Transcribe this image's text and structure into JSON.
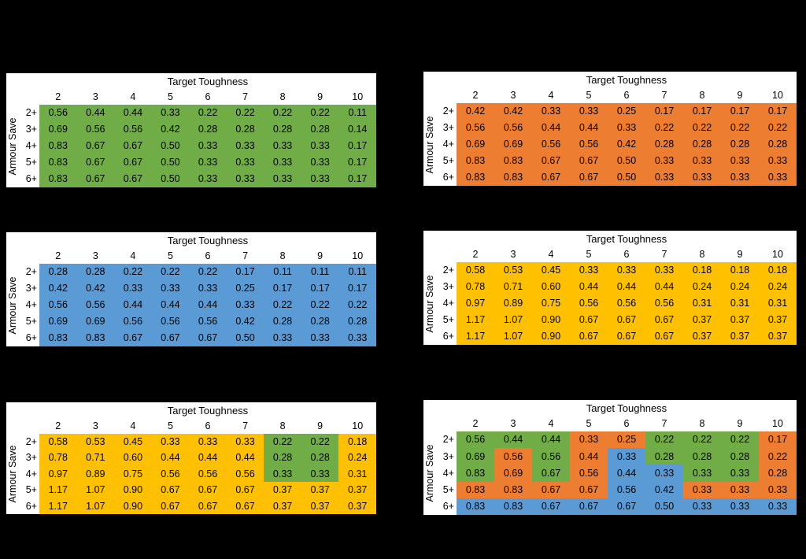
{
  "page": {
    "background": "#000000",
    "table_background": "#FFFFFF",
    "text_color": "#000000"
  },
  "color_map": {
    "green": "#70AD47",
    "orange": "#ED7D31",
    "blue": "#5B9BD5",
    "yellow": "#FFC000"
  },
  "chart_data": [
    {
      "type": "heatmap",
      "position": "top-left",
      "title": "Target Toughness",
      "ylabel": "Armour Save",
      "x_ticks": [
        "2",
        "3",
        "4",
        "5",
        "6",
        "7",
        "8",
        "9",
        "10"
      ],
      "y_ticks": [
        "2+",
        "3+",
        "4+",
        "5+",
        "6+"
      ],
      "uniform_color": "green",
      "cell_colors": null,
      "values": [
        [
          "0.56",
          "0.44",
          "0.44",
          "0.33",
          "0.22",
          "0.22",
          "0.22",
          "0.22",
          "0.11"
        ],
        [
          "0.69",
          "0.56",
          "0.56",
          "0.42",
          "0.28",
          "0.28",
          "0.28",
          "0.28",
          "0.14"
        ],
        [
          "0.83",
          "0.67",
          "0.67",
          "0.50",
          "0.33",
          "0.33",
          "0.33",
          "0.33",
          "0.17"
        ],
        [
          "0.83",
          "0.67",
          "0.67",
          "0.50",
          "0.33",
          "0.33",
          "0.33",
          "0.33",
          "0.17"
        ],
        [
          "0.83",
          "0.67",
          "0.67",
          "0.50",
          "0.33",
          "0.33",
          "0.33",
          "0.33",
          "0.17"
        ]
      ]
    },
    {
      "type": "heatmap",
      "position": "top-right",
      "title": "Target Toughness",
      "ylabel": "Armour Save",
      "x_ticks": [
        "2",
        "3",
        "4",
        "5",
        "6",
        "7",
        "8",
        "9",
        "10"
      ],
      "y_ticks": [
        "2+",
        "3+",
        "4+",
        "5+",
        "6+"
      ],
      "uniform_color": "orange",
      "cell_colors": null,
      "values": [
        [
          "0.42",
          "0.42",
          "0.33",
          "0.33",
          "0.25",
          "0.17",
          "0.17",
          "0.17",
          "0.17"
        ],
        [
          "0.56",
          "0.56",
          "0.44",
          "0.44",
          "0.33",
          "0.22",
          "0.22",
          "0.22",
          "0.22"
        ],
        [
          "0.69",
          "0.69",
          "0.56",
          "0.56",
          "0.42",
          "0.28",
          "0.28",
          "0.28",
          "0.28"
        ],
        [
          "0.83",
          "0.83",
          "0.67",
          "0.67",
          "0.50",
          "0.33",
          "0.33",
          "0.33",
          "0.33"
        ],
        [
          "0.83",
          "0.83",
          "0.67",
          "0.67",
          "0.50",
          "0.33",
          "0.33",
          "0.33",
          "0.33"
        ]
      ]
    },
    {
      "type": "heatmap",
      "position": "middle-left",
      "title": "Target Toughness",
      "ylabel": "Armour Save",
      "x_ticks": [
        "2",
        "3",
        "4",
        "5",
        "6",
        "7",
        "8",
        "9",
        "10"
      ],
      "y_ticks": [
        "2+",
        "3+",
        "4+",
        "5+",
        "6+"
      ],
      "uniform_color": "blue",
      "cell_colors": null,
      "values": [
        [
          "0.28",
          "0.28",
          "0.22",
          "0.22",
          "0.22",
          "0.17",
          "0.11",
          "0.11",
          "0.11"
        ],
        [
          "0.42",
          "0.42",
          "0.33",
          "0.33",
          "0.33",
          "0.25",
          "0.17",
          "0.17",
          "0.17"
        ],
        [
          "0.56",
          "0.56",
          "0.44",
          "0.44",
          "0.44",
          "0.33",
          "0.22",
          "0.22",
          "0.22"
        ],
        [
          "0.69",
          "0.69",
          "0.56",
          "0.56",
          "0.56",
          "0.42",
          "0.28",
          "0.28",
          "0.28"
        ],
        [
          "0.83",
          "0.83",
          "0.67",
          "0.67",
          "0.67",
          "0.50",
          "0.33",
          "0.33",
          "0.33"
        ]
      ]
    },
    {
      "type": "heatmap",
      "position": "middle-right",
      "title": "Target Toughness",
      "ylabel": "Armour Save",
      "x_ticks": [
        "2",
        "3",
        "4",
        "5",
        "6",
        "7",
        "8",
        "9",
        "10"
      ],
      "y_ticks": [
        "2+",
        "3+",
        "4+",
        "5+",
        "6+"
      ],
      "uniform_color": "yellow",
      "cell_colors": null,
      "values": [
        [
          "0.58",
          "0.53",
          "0.45",
          "0.33",
          "0.33",
          "0.33",
          "0.18",
          "0.18",
          "0.18"
        ],
        [
          "0.78",
          "0.71",
          "0.60",
          "0.44",
          "0.44",
          "0.44",
          "0.24",
          "0.24",
          "0.24"
        ],
        [
          "0.97",
          "0.89",
          "0.75",
          "0.56",
          "0.56",
          "0.56",
          "0.31",
          "0.31",
          "0.31"
        ],
        [
          "1.17",
          "1.07",
          "0.90",
          "0.67",
          "0.67",
          "0.67",
          "0.37",
          "0.37",
          "0.37"
        ],
        [
          "1.17",
          "1.07",
          "0.90",
          "0.67",
          "0.67",
          "0.67",
          "0.37",
          "0.37",
          "0.37"
        ]
      ]
    },
    {
      "type": "heatmap",
      "position": "bottom-left",
      "title": "Target Toughness",
      "ylabel": "Armour Save",
      "x_ticks": [
        "2",
        "3",
        "4",
        "5",
        "6",
        "7",
        "8",
        "9",
        "10"
      ],
      "y_ticks": [
        "2+",
        "3+",
        "4+",
        "5+",
        "6+"
      ],
      "uniform_color": "yellow",
      "cell_colors": [
        [
          "yellow",
          "yellow",
          "yellow",
          "yellow",
          "yellow",
          "yellow",
          "green",
          "green",
          "yellow"
        ],
        [
          "yellow",
          "yellow",
          "yellow",
          "yellow",
          "yellow",
          "yellow",
          "green",
          "green",
          "yellow"
        ],
        [
          "yellow",
          "yellow",
          "yellow",
          "yellow",
          "yellow",
          "yellow",
          "green",
          "green",
          "yellow"
        ],
        [
          "yellow",
          "yellow",
          "yellow",
          "yellow",
          "yellow",
          "yellow",
          "yellow",
          "yellow",
          "yellow"
        ],
        [
          "yellow",
          "yellow",
          "yellow",
          "yellow",
          "yellow",
          "yellow",
          "yellow",
          "yellow",
          "yellow"
        ]
      ],
      "values": [
        [
          "0.58",
          "0.53",
          "0.45",
          "0.33",
          "0.33",
          "0.33",
          "0.22",
          "0.22",
          "0.18"
        ],
        [
          "0.78",
          "0.71",
          "0.60",
          "0.44",
          "0.44",
          "0.44",
          "0.28",
          "0.28",
          "0.24"
        ],
        [
          "0.97",
          "0.89",
          "0.75",
          "0.56",
          "0.56",
          "0.56",
          "0.33",
          "0.33",
          "0.31"
        ],
        [
          "1.17",
          "1.07",
          "0.90",
          "0.67",
          "0.67",
          "0.67",
          "0.37",
          "0.37",
          "0.37"
        ],
        [
          "1.17",
          "1.07",
          "0.90",
          "0.67",
          "0.67",
          "0.67",
          "0.37",
          "0.37",
          "0.37"
        ]
      ]
    },
    {
      "type": "heatmap",
      "position": "bottom-right",
      "title": "Target Toughness",
      "ylabel": "Armour Save",
      "x_ticks": [
        "2",
        "3",
        "4",
        "5",
        "6",
        "7",
        "8",
        "9",
        "10"
      ],
      "y_ticks": [
        "2+",
        "3+",
        "4+",
        "5+",
        "6+"
      ],
      "uniform_color": "green",
      "cell_colors": [
        [
          "green",
          "green",
          "green",
          "orange",
          "orange",
          "green",
          "green",
          "green",
          "orange"
        ],
        [
          "green",
          "orange",
          "green",
          "orange",
          "blue",
          "green",
          "green",
          "green",
          "orange"
        ],
        [
          "green",
          "orange",
          "green",
          "orange",
          "blue",
          "blue",
          "green",
          "green",
          "orange"
        ],
        [
          "orange",
          "orange",
          "orange",
          "orange",
          "blue",
          "blue",
          "orange",
          "orange",
          "orange"
        ],
        [
          "blue",
          "blue",
          "blue",
          "blue",
          "blue",
          "blue",
          "blue",
          "blue",
          "blue"
        ]
      ],
      "values": [
        [
          "0.56",
          "0.44",
          "0.44",
          "0.33",
          "0.25",
          "0.22",
          "0.22",
          "0.22",
          "0.17"
        ],
        [
          "0.69",
          "0.56",
          "0.56",
          "0.44",
          "0.33",
          "0.28",
          "0.28",
          "0.28",
          "0.22"
        ],
        [
          "0.83",
          "0.69",
          "0.67",
          "0.56",
          "0.44",
          "0.33",
          "0.33",
          "0.33",
          "0.28"
        ],
        [
          "0.83",
          "0.83",
          "0.67",
          "0.67",
          "0.56",
          "0.42",
          "0.33",
          "0.33",
          "0.33"
        ],
        [
          "0.83",
          "0.83",
          "0.67",
          "0.67",
          "0.67",
          "0.50",
          "0.33",
          "0.33",
          "0.33"
        ]
      ]
    }
  ]
}
